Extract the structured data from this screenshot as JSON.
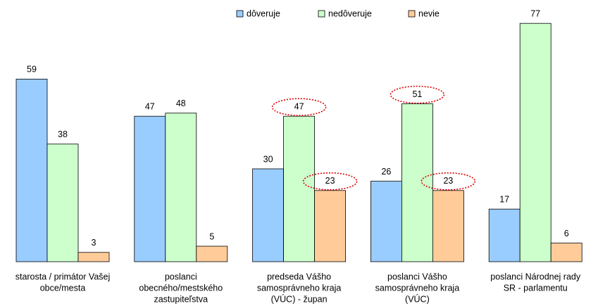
{
  "chart_data": {
    "type": "bar",
    "categories": [
      [
        "starosta / primátor Vašej",
        "obce/mesta"
      ],
      [
        "poslanci",
        "obecného/mestského",
        "zastupiteľstva"
      ],
      [
        "predseda Vášho",
        "samosprávneho kraja",
        "(VÚC) - župan"
      ],
      [
        "poslanci Vášho",
        "samosprávneho kraja",
        "(VÚC)"
      ],
      [
        "poslanci Národnej rady",
        "SR - parlamentu"
      ]
    ],
    "series": [
      {
        "name": "dôveruje",
        "color": "#99ccff",
        "values": [
          59,
          47,
          30,
          26,
          17
        ]
      },
      {
        "name": "nedôveruje",
        "color": "#ccffcc",
        "values": [
          38,
          48,
          47,
          51,
          77
        ]
      },
      {
        "name": "nevie",
        "color": "#ffcc99",
        "values": [
          3,
          5,
          23,
          23,
          6
        ]
      }
    ]
  }
}
